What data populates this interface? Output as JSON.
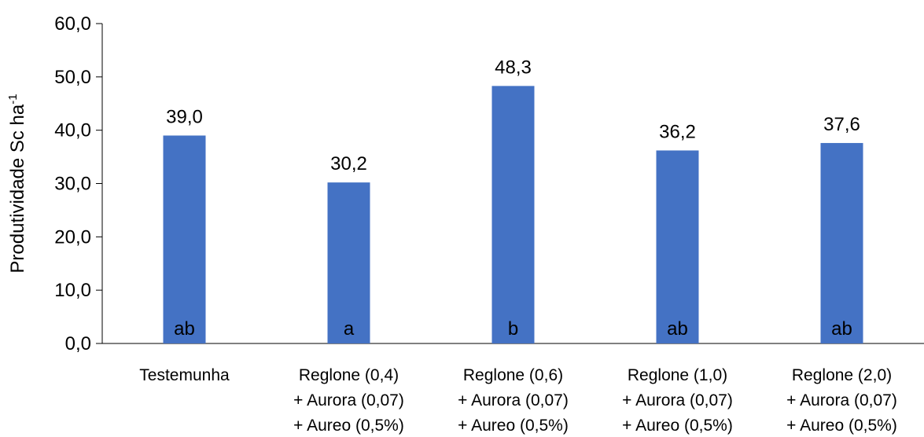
{
  "chart_data": {
    "type": "bar",
    "categories": [
      [
        "Testemunha"
      ],
      [
        "Reglone (0,4)",
        "+ Aurora (0,07)",
        "+ Aureo (0,5%)"
      ],
      [
        "Reglone (0,6)",
        "+ Aurora (0,07)",
        "+ Aureo (0,5%)"
      ],
      [
        "Reglone (1,0)",
        "+ Aurora (0,07)",
        "+ Aureo (0,5%)"
      ],
      [
        "Reglone (2,0)",
        "+ Aurora (0,07)",
        "+ Aureo (0,5%)"
      ]
    ],
    "values": [
      39.0,
      30.2,
      48.3,
      36.2,
      37.6
    ],
    "value_labels": [
      "39,0",
      "30,2",
      "48,3",
      "36,2",
      "37,6"
    ],
    "letters": [
      "ab",
      "a",
      "b",
      "ab",
      "ab"
    ],
    "ylabel": "Produtividade Sc ha",
    "ylabel_superscript": "-1",
    "ylim": [
      0,
      60
    ],
    "yticks": [
      0,
      10,
      20,
      30,
      40,
      50,
      60
    ],
    "ytick_labels": [
      "0,0",
      "10,0",
      "20,0",
      "30,0",
      "40,0",
      "50,0",
      "60,0"
    ],
    "grid": false,
    "bar_color": "#4472C4"
  }
}
